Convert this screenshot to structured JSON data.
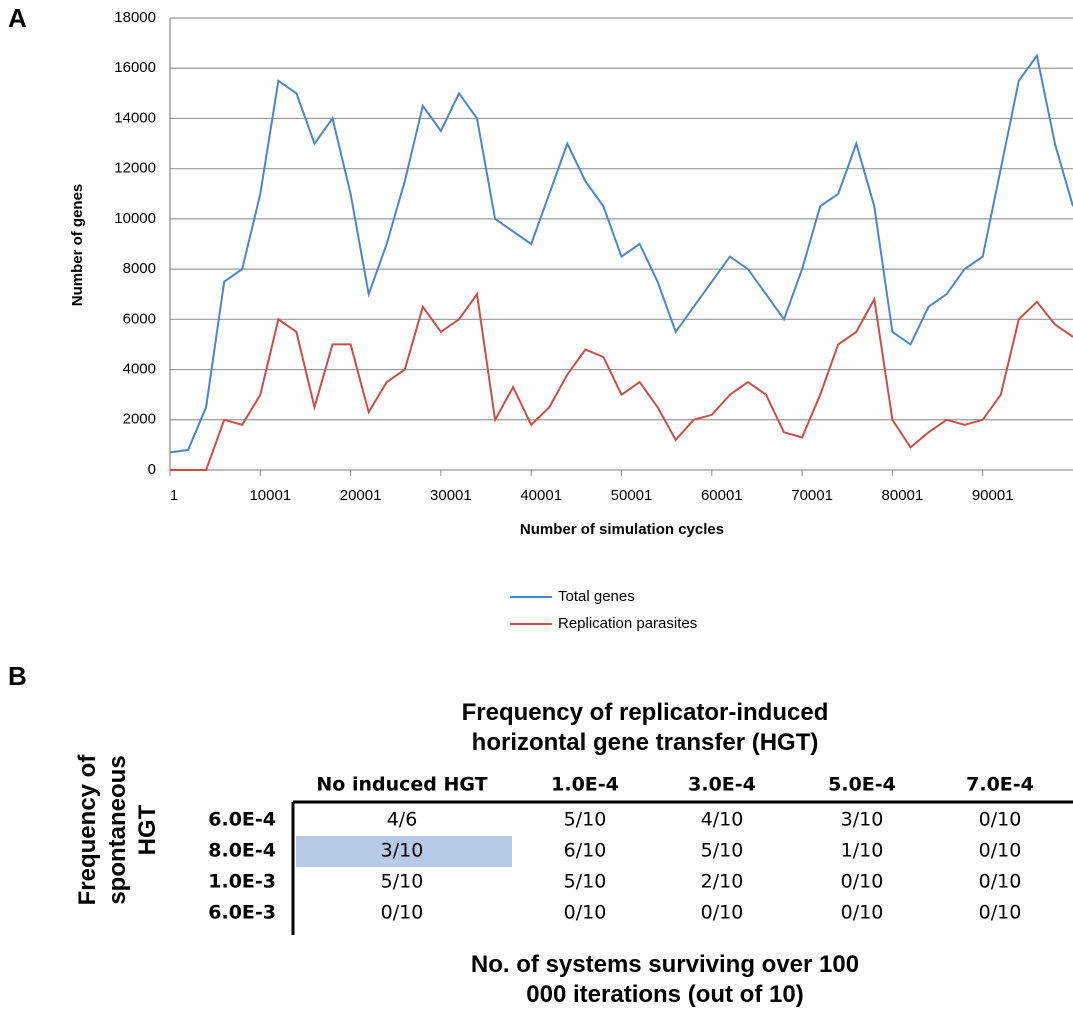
{
  "panel_labels": [
    "A",
    "B"
  ],
  "chart_data": {
    "type": "line",
    "x_label": "Number of simulation cycles",
    "y_label": "Number of genes",
    "x": [
      1,
      2000,
      4000,
      6000,
      8000,
      10000,
      12000,
      14000,
      16000,
      18000,
      20000,
      22000,
      24000,
      26000,
      28000,
      30000,
      32000,
      34000,
      36000,
      38000,
      40000,
      42000,
      44000,
      46000,
      48000,
      50000,
      52000,
      54000,
      56000,
      58000,
      60000,
      62000,
      64000,
      66000,
      68000,
      70000,
      72000,
      74000,
      76000,
      78000,
      80000,
      82000,
      84000,
      86000,
      88000,
      90000,
      92000,
      94000,
      96000,
      98000,
      100000
    ],
    "series": [
      {
        "name": "Total genes",
        "color": "#4f86c6",
        "values": [
          700,
          800,
          2500,
          7500,
          8000,
          11000,
          15500,
          15000,
          13000,
          14000,
          11000,
          7000,
          9000,
          11500,
          14500,
          13500,
          15000,
          14000,
          10000,
          9500,
          9000,
          11000,
          13000,
          11500,
          10500,
          8500,
          9000,
          7500,
          5500,
          6500,
          7500,
          8500,
          8000,
          7000,
          6000,
          8000,
          10500,
          11000,
          13000,
          10500,
          5500,
          5000,
          6500,
          7000,
          8000,
          8500,
          12000,
          15500,
          16500,
          13000,
          10500
        ]
      },
      {
        "name": "Replication parasites",
        "color": "#c8504b",
        "values": [
          0,
          0,
          0,
          2000,
          1800,
          3000,
          6000,
          5500,
          2500,
          5000,
          5000,
          2300,
          3500,
          4000,
          6500,
          5500,
          6000,
          7000,
          2000,
          3300,
          1800,
          2500,
          3800,
          4800,
          4500,
          3000,
          3500,
          2500,
          1200,
          2000,
          2200,
          3000,
          3500,
          3000,
          1500,
          1300,
          3000,
          5000,
          5500,
          6800,
          2000,
          900,
          1500,
          2000,
          1800,
          2000,
          3000,
          6000,
          6700,
          5800,
          5300
        ]
      }
    ],
    "xlim": [
      1,
      100001
    ],
    "xticks": [
      1,
      10001,
      20001,
      30001,
      40001,
      50001,
      60001,
      70001,
      80001,
      90001
    ],
    "ylim": [
      0,
      18000
    ],
    "yticks": [
      0,
      2000,
      4000,
      6000,
      8000,
      10000,
      12000,
      14000,
      16000,
      18000
    ],
    "grid": true,
    "legend": "bottom"
  },
  "table": {
    "column_title": "Frequency of replicator-induced horizontal gene transfer (HGT)",
    "row_title": "Frequency of spontaneous HGT",
    "columns": [
      "No induced HGT",
      "1.0E-4",
      "3.0E-4",
      "5.0E-4",
      "7.0E-4"
    ],
    "rows": [
      {
        "label": "6.0E-4",
        "cells": [
          "4/6",
          "5/10",
          "4/10",
          "3/10",
          "0/10"
        ]
      },
      {
        "label": "8.0E-4",
        "cells": [
          "3/10",
          "6/10",
          "5/10",
          "1/10",
          "0/10"
        ]
      },
      {
        "label": "1.0E-3",
        "cells": [
          "5/10",
          "5/10",
          "2/10",
          "0/10",
          "0/10"
        ]
      },
      {
        "label": "6.0E-3",
        "cells": [
          "0/10",
          "0/10",
          "0/10",
          "0/10",
          "0/10"
        ]
      }
    ],
    "caption": "No. of systems surviving over 100 000 iterations (out of 10)"
  }
}
